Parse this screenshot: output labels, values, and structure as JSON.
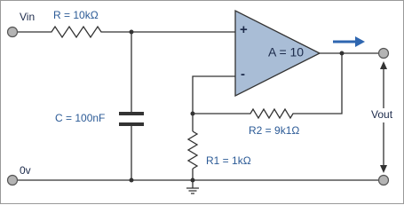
{
  "labels": {
    "vin": "Vin",
    "r": "R = 10kΩ",
    "c": "C = 100nF",
    "plus": "+",
    "minus": "-",
    "gain": "A = 10",
    "r2": "R2 = 9k1Ω",
    "r1": "R1 = 1kΩ",
    "ground": "0v",
    "vout": "Vout"
  }
}
